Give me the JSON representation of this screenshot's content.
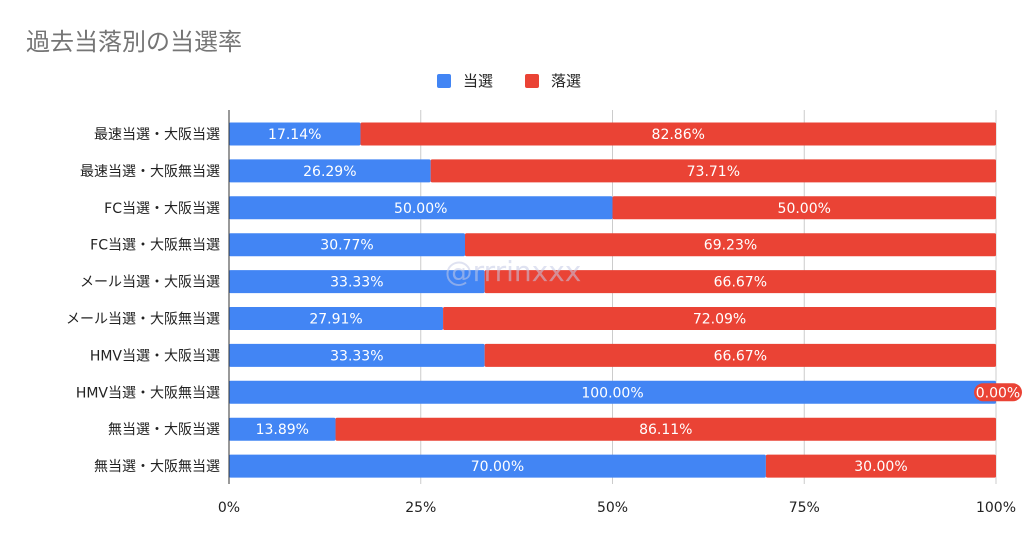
{
  "chart_data": {
    "type": "bar",
    "orientation": "horizontal",
    "stacked": "percent",
    "title": "過去当落別の当選率",
    "categories": [
      "最速当選・大阪当選",
      "最速当選・大阪無当選",
      "FC当選・大阪当選",
      "FC当選・大阪無当選",
      "メール当選・大阪当選",
      "メール当選・大阪無当選",
      "HMV当選・大阪当選",
      "HMV当選・大阪無当選",
      "無当選・大阪当選",
      "無当選・大阪無当選"
    ],
    "series": [
      {
        "name": "当選",
        "color": "#4285f4",
        "values": [
          17.14,
          26.29,
          50.0,
          30.77,
          33.33,
          27.91,
          33.33,
          100.0,
          13.89,
          70.0
        ],
        "labels": [
          "17.14%",
          "26.29%",
          "50.00%",
          "30.77%",
          "33.33%",
          "27.91%",
          "33.33%",
          "100.00%",
          "13.89%",
          "70.00%"
        ]
      },
      {
        "name": "落選",
        "color": "#ea4335",
        "values": [
          82.86,
          73.71,
          50.0,
          69.23,
          66.67,
          72.09,
          66.67,
          0.0,
          86.11,
          30.0
        ],
        "labels": [
          "82.86%",
          "73.71%",
          "50.00%",
          "69.23%",
          "66.67%",
          "72.09%",
          "66.67%",
          "0.00%",
          "86.11%",
          "30.00%"
        ]
      }
    ],
    "xlim": [
      0,
      100
    ],
    "xticks": [
      "0%",
      "25%",
      "50%",
      "75%",
      "100%"
    ],
    "grid": true,
    "legend": "top-center",
    "watermark": "@rrrinxxx"
  }
}
